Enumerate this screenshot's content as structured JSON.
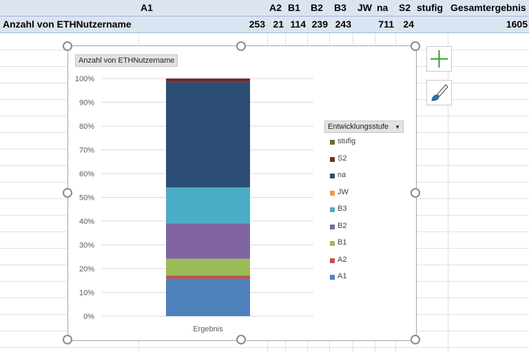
{
  "pivot": {
    "header_cells": [
      {
        "key": "A1",
        "text": "A1"
      },
      {
        "key": "A2",
        "text": "A2"
      },
      {
        "key": "B1",
        "text": "B1"
      },
      {
        "key": "B2",
        "text": "B2"
      },
      {
        "key": "B3",
        "text": "B3"
      },
      {
        "key": "JW",
        "text": "JW"
      },
      {
        "key": "na",
        "text": "na"
      },
      {
        "key": "S2",
        "text": "S2"
      },
      {
        "key": "stufig",
        "text": "stufig"
      },
      {
        "key": "total",
        "text": "Gesamtergebnis"
      }
    ],
    "row_label": "Anzahl von ETHNutzername",
    "values": [
      "253",
      "21",
      "114",
      "239",
      "243",
      "",
      "711",
      "24",
      "",
      "1605"
    ]
  },
  "chart": {
    "value_field_button": "Anzahl von ETHNutzername",
    "legend_field_button": "Entwicklungsstufe",
    "legend_dropdown_glyph": "▼",
    "accent_colors": {
      "A1": "#4f81bd",
      "A2": "#c0504d",
      "B1": "#9bbb59",
      "B2": "#8064a2",
      "B3": "#4bacc6",
      "JW": "#f79646",
      "na": "#2c4d75",
      "S2": "#772c2a",
      "stufig": "#5f7530"
    }
  },
  "chart_data": {
    "type": "bar",
    "stacked": "percent",
    "categories": [
      "Ergebnis"
    ],
    "series": [
      {
        "name": "A1",
        "values": [
          253
        ]
      },
      {
        "name": "A2",
        "values": [
          21
        ]
      },
      {
        "name": "B1",
        "values": [
          114
        ]
      },
      {
        "name": "B2",
        "values": [
          239
        ]
      },
      {
        "name": "B3",
        "values": [
          243
        ]
      },
      {
        "name": "JW",
        "values": [
          0
        ]
      },
      {
        "name": "na",
        "values": [
          711
        ]
      },
      {
        "name": "S2",
        "values": [
          24
        ]
      },
      {
        "name": "stufig",
        "values": [
          0
        ]
      }
    ],
    "legend_order": [
      "stufig",
      "S2",
      "na",
      "JW",
      "B3",
      "B2",
      "B1",
      "A2",
      "A1"
    ],
    "yticks": [
      "0%",
      "10%",
      "20%",
      "30%",
      "40%",
      "50%",
      "60%",
      "70%",
      "80%",
      "90%",
      "100%"
    ],
    "ylim": [
      0,
      100
    ],
    "grid": true,
    "legend_position": "right"
  },
  "icons": {
    "add_elements": "plus-icon",
    "styles": "brush-icon"
  }
}
